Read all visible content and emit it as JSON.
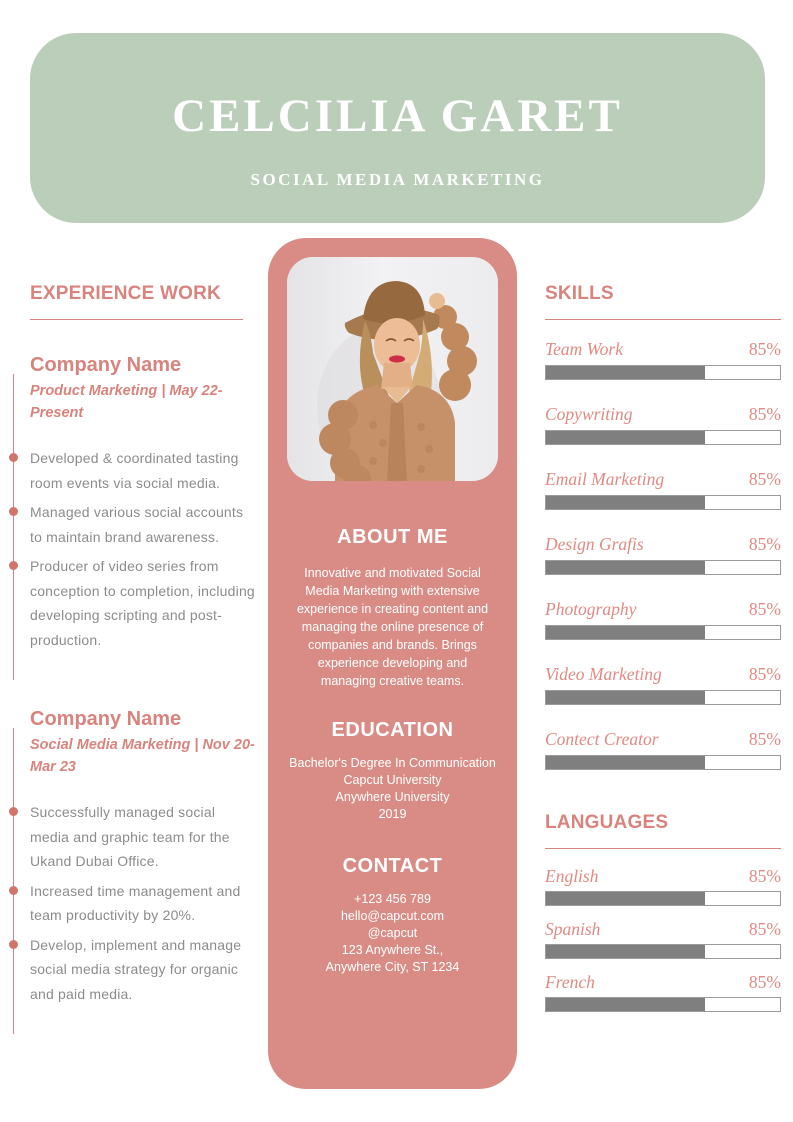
{
  "header": {
    "name": "CELCILIA GARET",
    "subtitle": "SOCIAL MEDIA MARKETING",
    "bg_color": "#baceba",
    "text_color": "#ffffff"
  },
  "experience": {
    "title": "EXPERIENCE WORK",
    "jobs": [
      {
        "company": "Company Name",
        "role_period": "Product Marketing | May 22-Present",
        "bullets": [
          "Developed & coordinated tasting room events via social media.",
          "Managed various social accounts to maintain brand awareness.",
          "Producer of video series from conception to completion, including developing scripting and post-production."
        ]
      },
      {
        "company": "Company Name",
        "role_period": "Social Media Marketing | Nov 20-Mar 23",
        "bullets": [
          "Successfully managed social media and graphic team for the Ukand Dubai Office.",
          "Increased time management and team productivity by 20%.",
          "Develop, implement and manage social media strategy for organic and paid media."
        ]
      }
    ]
  },
  "profile": {
    "photo_description": "woman wearing wide-brim hat and knitted camel cardigan",
    "about": {
      "title": "ABOUT ME",
      "text": "Innovative and motivated Social Media Marketing with extensive experience in creating content and managing the online presence of companies and brands. Brings experience developing and managing creative teams."
    },
    "education": {
      "title": "EDUCATION",
      "lines": [
        "Bachelor's Degree In Communication",
        "Capcut University",
        "Anywhere University",
        "2019"
      ]
    },
    "contact": {
      "title": "CONTACT",
      "lines": [
        "+123  456 789",
        "hello@capcut.com",
        "@capcut",
        "123 Anywhere St.,",
        "Anywhere City, ST 1234"
      ]
    },
    "panel_color": "#d98c85"
  },
  "skills": {
    "title": "SKILLS",
    "items": [
      {
        "name": "Team Work",
        "level": "85%",
        "fill_pct": 68
      },
      {
        "name": "Copywriting",
        "level": "85%",
        "fill_pct": 68
      },
      {
        "name": "Email Marketing",
        "level": "85%",
        "fill_pct": 68
      },
      {
        "name": "Design Grafis",
        "level": "85%",
        "fill_pct": 68
      },
      {
        "name": "Photography",
        "level": "85%",
        "fill_pct": 68
      },
      {
        "name": "Video Marketing",
        "level": "85%",
        "fill_pct": 68
      },
      {
        "name": "Contect Creator",
        "level": "85%",
        "fill_pct": 68
      }
    ]
  },
  "languages": {
    "title": "LANGUAGES",
    "items": [
      {
        "name": "English",
        "level": "85%",
        "fill_pct": 68
      },
      {
        "name": "Spanish",
        "level": "85%",
        "fill_pct": 68
      },
      {
        "name": "French",
        "level": "85%",
        "fill_pct": 68
      }
    ]
  },
  "colors": {
    "accent": "#d9837d",
    "accent_light": "#e08a83",
    "header_green": "#baceba",
    "panel_pink": "#d98c85",
    "bar_fill": "#7f7f7f",
    "bar_border": "#9b9b9b",
    "body_text": "#8c8c8c",
    "timeline_dot": "#d2736c"
  }
}
